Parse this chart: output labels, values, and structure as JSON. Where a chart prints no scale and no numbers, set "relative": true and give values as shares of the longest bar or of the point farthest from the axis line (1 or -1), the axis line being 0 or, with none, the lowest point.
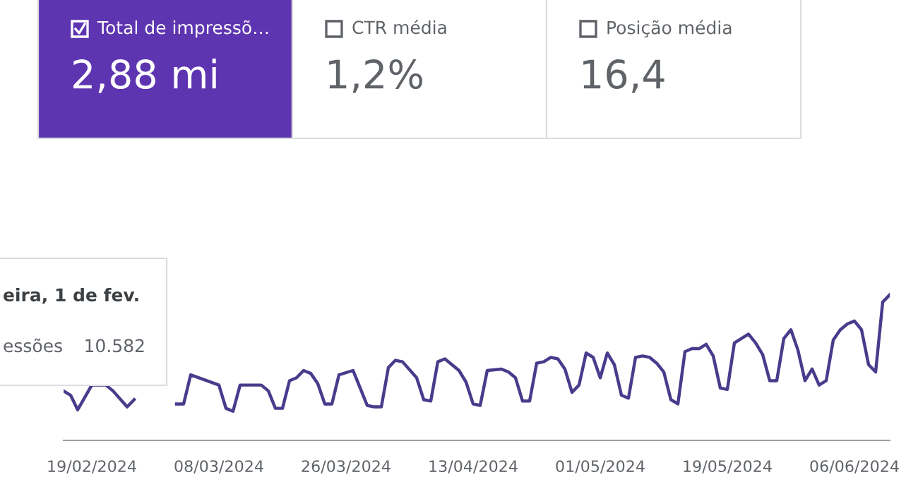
{
  "chart_data": [
    {
      "type": "other",
      "categories": [
        "Total de impressõ…",
        "CTR média",
        "Posição média"
      ],
      "value_labels": [
        "2,88 mi",
        "1,2%",
        "16,4"
      ],
      "colors": [
        "#5e35b1",
        "#ffffff",
        "#ffffff"
      ]
    },
    {
      "type": "line",
      "relative": true,
      "marker": "none",
      "line_style": "solid",
      "annotations": [
        "eira, 1 de fev.",
        "essões",
        "10.582"
      ],
      "x": [
        "2024-02-15",
        "2024-02-16",
        "2024-02-17",
        "2024-02-19",
        "2024-02-21",
        "2024-02-22",
        "2024-02-24",
        "2024-02-25",
        "2024-02-26",
        "2024-02-28",
        "2024-03-01",
        "2024-03-02",
        "2024-03-03",
        "2024-03-04",
        "2024-03-08",
        "2024-03-09",
        "2024-03-10",
        "2024-03-11",
        "2024-03-13",
        "2024-03-14",
        "2024-03-15",
        "2024-03-16",
        "2024-03-17",
        "2024-03-18",
        "2024-03-19",
        "2024-03-20",
        "2024-03-21",
        "2024-03-22",
        "2024-03-23",
        "2024-03-24",
        "2024-03-25",
        "2024-03-27",
        "2024-03-29",
        "2024-03-30",
        "2024-03-31",
        "2024-04-01",
        "2024-04-02",
        "2024-04-03",
        "2024-04-05",
        "2024-04-06",
        "2024-04-07",
        "2024-04-08",
        "2024-04-09",
        "2024-04-10",
        "2024-04-11",
        "2024-04-12",
        "2024-04-13",
        "2024-04-14",
        "2024-04-15",
        "2024-04-17",
        "2024-04-18",
        "2024-04-19",
        "2024-04-20",
        "2024-04-21",
        "2024-04-22",
        "2024-04-23",
        "2024-04-24",
        "2024-04-25",
        "2024-04-26",
        "2024-04-27",
        "2024-04-28",
        "2024-04-29",
        "2024-04-30",
        "2024-05-01",
        "2024-05-02",
        "2024-05-03",
        "2024-05-04",
        "2024-05-05",
        "2024-05-06",
        "2024-05-07",
        "2024-05-08",
        "2024-05-09",
        "2024-05-10",
        "2024-05-11",
        "2024-05-12",
        "2024-05-13",
        "2024-05-14",
        "2024-05-15",
        "2024-05-16",
        "2024-05-17",
        "2024-05-18",
        "2024-05-19",
        "2024-05-20",
        "2024-05-21",
        "2024-05-22",
        "2024-05-23",
        "2024-05-24",
        "2024-05-25",
        "2024-05-26",
        "2024-05-27",
        "2024-05-28",
        "2024-05-29",
        "2024-05-30",
        "2024-05-31",
        "2024-06-01",
        "2024-06-02",
        "2024-06-03",
        "2024-06-04",
        "2024-06-05",
        "2024-06-06",
        "2024-06-07",
        "2024-06-08",
        "2024-06-09",
        "2024-06-10",
        "2024-06-11"
      ],
      "series": [
        {
          "color": "#4a3b8c",
          "values": [
            0.34,
            0.31,
            0.21,
            0.38,
            0.38,
            0.34,
            0.23,
            0.28,
            null,
            null,
            null,
            0.25,
            0.25,
            0.45,
            0.38,
            0.22,
            0.2,
            0.38,
            0.38,
            0.38,
            0.34,
            0.22,
            0.22,
            0.41,
            0.43,
            0.48,
            0.46,
            0.39,
            0.25,
            0.25,
            0.45,
            0.48,
            0.24,
            0.23,
            0.23,
            0.5,
            0.55,
            0.54,
            0.43,
            0.28,
            0.27,
            0.54,
            0.56,
            0.52,
            0.48,
            0.4,
            0.25,
            0.24,
            0.48,
            0.49,
            0.47,
            0.43,
            0.27,
            0.27,
            0.53,
            0.54,
            0.57,
            0.56,
            0.49,
            0.33,
            0.38,
            0.6,
            0.57,
            0.43,
            0.6,
            0.52,
            0.31,
            0.29,
            0.57,
            0.58,
            0.57,
            0.53,
            0.47,
            0.28,
            0.25,
            0.61,
            0.63,
            0.63,
            0.66,
            0.58,
            0.36,
            0.35,
            0.67,
            0.7,
            0.73,
            0.67,
            0.59,
            0.41,
            0.41,
            0.7,
            0.76,
            0.62,
            0.41,
            0.49,
            0.38,
            0.41,
            0.69,
            0.76,
            0.8,
            0.82,
            0.76,
            0.52,
            0.47,
            0.95,
            1
          ]
        }
      ],
      "xlim": [
        "2024-02-15",
        "2024-06-11"
      ],
      "xticks": [
        {
          "value": "2024-02-19",
          "label": "19/02/2024"
        },
        {
          "value": "2024-03-08",
          "label": "08/03/2024"
        },
        {
          "value": "2024-03-26",
          "label": "26/03/2024"
        },
        {
          "value": "2024-04-13",
          "label": "13/04/2024"
        },
        {
          "value": "2024-05-01",
          "label": "01/05/2024"
        },
        {
          "value": "2024-05-19",
          "label": "19/05/2024"
        },
        {
          "value": "2024-06-06",
          "label": "06/06/2024"
        }
      ]
    }
  ]
}
